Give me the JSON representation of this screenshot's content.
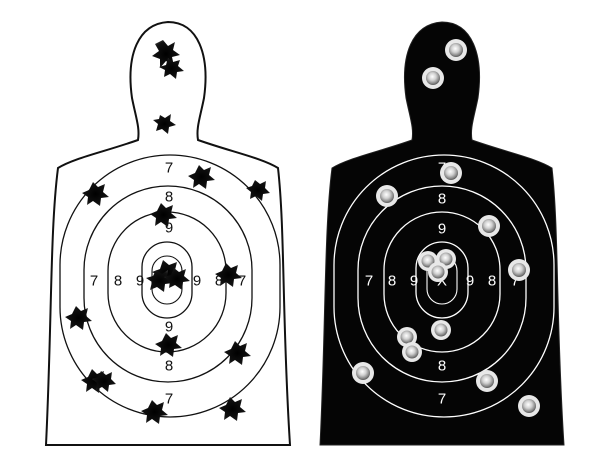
{
  "left_target": {
    "style": "white silhouette, black outline, black bullet holes",
    "top_center": "7",
    "ring8_top": "8",
    "ring9_top": "9",
    "left_7": "7",
    "left_8": "8",
    "left_9": "9",
    "right_9": "9",
    "right_8": "8",
    "right_7": "7",
    "ring9_bottom": "9",
    "ring8_bottom": "8",
    "bottom_center": "7"
  },
  "right_target": {
    "style": "black silhouette, white outline, silver bullet holes",
    "top_center": "7",
    "ring8_top": "8",
    "ring9_top": "9",
    "left_7": "7",
    "left_8": "8",
    "left_9": "9",
    "center_x": "X",
    "right_9": "9",
    "right_8": "8",
    "right_7": "7",
    "ring9_bottom": "9",
    "ring8_bottom": "8",
    "bottom_center": "7"
  },
  "colors": {
    "background": "#ffffff",
    "left_fill": "#ffffff",
    "left_stroke": "#111111",
    "right_fill": "#050505",
    "right_stroke": "#ffffff",
    "hole_dark": "#0f0f0f",
    "hole_silver": "#d8d8d8"
  }
}
